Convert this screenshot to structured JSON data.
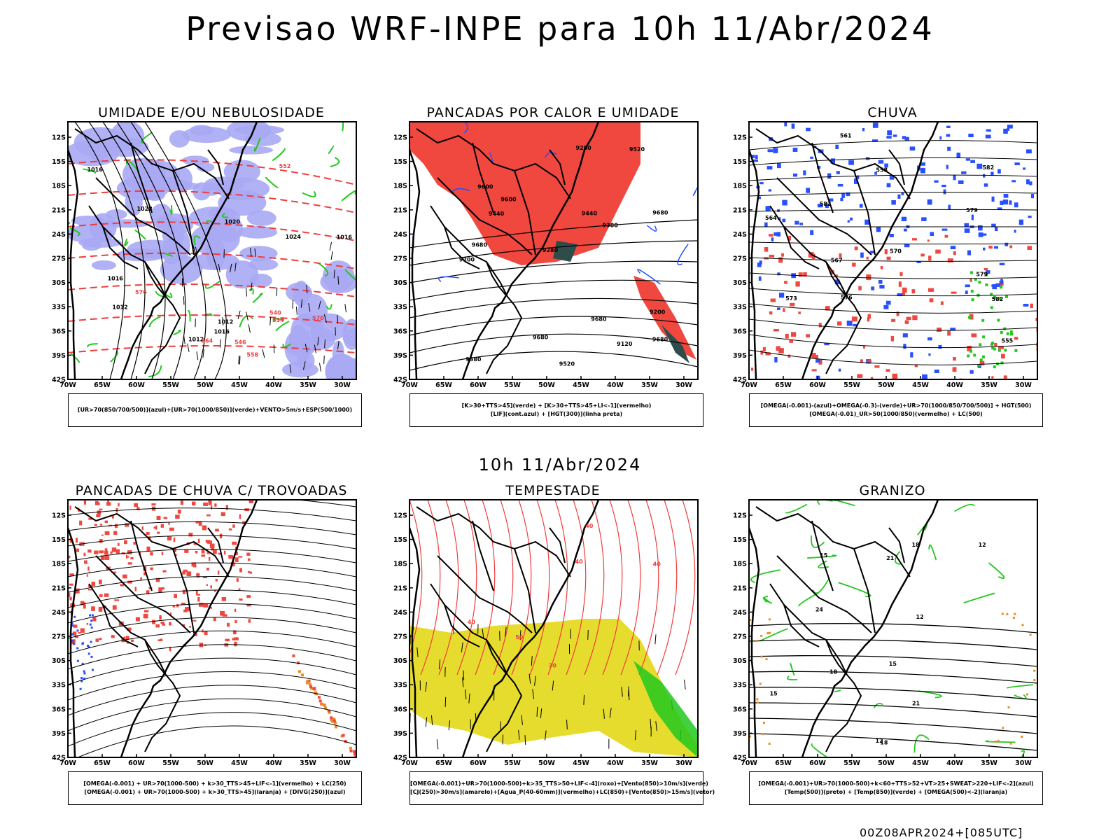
{
  "title": "Previsao WRF-INPE  para 10h 11/Abr/2024",
  "subtitle_time": "10h 11/Abr/2024",
  "run_stamp": "00Z08APR2024+[085UTC]",
  "axes": {
    "lat_labels": [
      "12S",
      "15S",
      "18S",
      "21S",
      "24S",
      "27S",
      "30S",
      "33S",
      "36S",
      "39S",
      "42S"
    ],
    "lon_labels": [
      "70W",
      "65W",
      "60W",
      "55W",
      "50W",
      "45W",
      "40W",
      "35W",
      "30W"
    ]
  },
  "colors": {
    "blue_fill": "#a8a8f4",
    "red_fill": "#f0473f",
    "green_line": "#22c81e",
    "red_line": "#f03c3c",
    "blue_line": "#2850ff",
    "yellow_fill": "#e6dc2d",
    "dark_teal": "#2e4d4a",
    "orange": "#ee8a22"
  },
  "panels": [
    {
      "title": "UMIDADE E/OU NEBULOSIDADE",
      "legend": [
        "[UR>70(850/700/500)](azul)+[UR>70(1000/850)](verde)+VENTO>5m/s+ESP(500/1000)"
      ],
      "contour_labels": [
        "1012",
        "1012",
        "1020",
        "1016",
        "1016",
        "1012",
        "1016",
        "1016",
        "1024",
        "1028",
        "576",
        "570",
        "564",
        "558",
        "552",
        "546",
        "540",
        "534"
      ]
    },
    {
      "title": "PANCADAS POR CALOR E UMIDADE",
      "legend": [
        "[K>30+TTS>45](verde) + [K>30+TTS>45+LI<-1](vermelho)",
        "[LIF](cont.azul) + [HGT(300)](linha preta)"
      ],
      "contour_labels": [
        "9680",
        "9680",
        "9680",
        "9680",
        "9680",
        "9600",
        "9600",
        "9520",
        "9520",
        "9440",
        "9440",
        "9380",
        "9380",
        "9280",
        "9280",
        "9200",
        "9200",
        "9120"
      ]
    },
    {
      "title": "CHUVA",
      "legend": [
        "[OMEGA(-0.001)-(azul)+OMEGA(-0.3)-(verde)+UR>70(1000/850/700/500)] + HGT(500)",
        "[OMEGA(-0.01)_UR>50(1000/850)(vermelho) + LC(500)"
      ],
      "contour_labels": [
        "582",
        "582",
        "582",
        "579",
        "579",
        "576",
        "573",
        "570",
        "567",
        "564",
        "561",
        "558",
        "555"
      ]
    },
    {
      "title": "PANCADAS DE CHUVA C/ TROVOADAS",
      "legend": [
        "[OMEGA(-0.001) + UR>70(1000-500) + k>30_TTS>45+LIF<-1](vermelho) + LC(250)",
        "[OMEGA(-0.001) + UR>70(1000-500) + k>30_TTS>45](laranja) + [DIVG(250)](azul)"
      ],
      "contour_labels": []
    },
    {
      "title": "TEMPESTADE",
      "legend": [
        "[OMEGA(-0.001)+UR>70(1000-500)+k>35_TTS>50+LIF<-4](roxo)+[Vento(850)>10m/s](verde)",
        "[CJ(250)>30m/s](amarelo)+[Agua_P(40-60mm)](vermelho)+LC(850)+[Vento(850)>15m/s](vetor)"
      ],
      "contour_labels": [
        "50",
        "40",
        "40",
        "40",
        "40",
        "30"
      ]
    },
    {
      "title": "GRANIZO",
      "legend": [
        "[OMEGA(-0.001)+UR>70(1000-500)+k<60+TTS>52+VT>25+SWEAT>220+LIF<-2](azul)",
        "[Temp(500)](preto) + [Temp(850)](verde) + [OMEGA(500)<-2](laranja)"
      ],
      "contour_labels": [
        "12",
        "12",
        "15",
        "15",
        "15",
        "18",
        "18",
        "21",
        "21",
        "24",
        "12",
        "18"
      ]
    }
  ]
}
